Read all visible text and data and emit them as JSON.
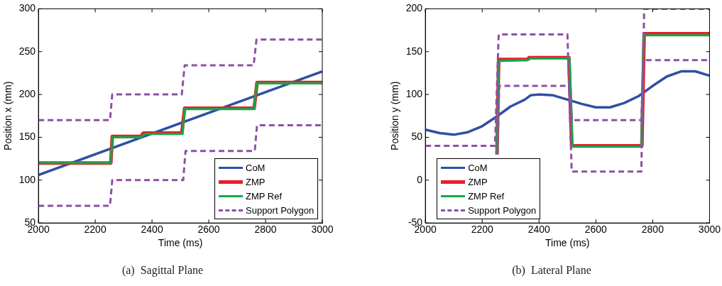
{
  "chart_data": [
    {
      "type": "line",
      "title": "(a)  Sagittal Plane",
      "xlabel": "Time (ms)",
      "ylabel": "Position x (mm)",
      "xlim": [
        2000,
        3000
      ],
      "xticks": [
        2000,
        2200,
        2400,
        2600,
        2800,
        3000
      ],
      "ylim": [
        50,
        300
      ],
      "yticks": [
        50,
        100,
        150,
        200,
        250,
        300
      ],
      "legend": "bottom right",
      "grid": false,
      "marker": "none",
      "series": [
        {
          "name": "CoM",
          "color": "#2e4fa3",
          "x": [
            2000,
            3000
          ],
          "values": [
            106,
            227
          ]
        },
        {
          "name": "ZMP",
          "color": "#e8202a",
          "x": [
            2000,
            2255,
            2260,
            2360,
            2370,
            2505,
            2515,
            2760,
            2770,
            3000
          ],
          "values": [
            120,
            120,
            151,
            151,
            155,
            155,
            184,
            184,
            214,
            214
          ]
        },
        {
          "name": "ZMP Ref",
          "color": "#12a84a",
          "x": [
            2000,
            2255,
            2260,
            2360,
            2375,
            2508,
            2515,
            2760,
            2768,
            3000
          ],
          "values": [
            120,
            120,
            150,
            150,
            154,
            154,
            183,
            183,
            213,
            213
          ]
        },
        {
          "name": "Support Polygon",
          "color": "#8e4fa8",
          "line_style": "dashed",
          "x": [
            2000,
            2252,
            2260,
            2505,
            2515,
            2758,
            2768,
            3000
          ],
          "values": [
            170,
            170,
            200,
            200,
            234,
            234,
            264,
            264
          ]
        },
        {
          "color": "#8e4fa8",
          "line_style": "dashed",
          "x": [
            2000,
            2252,
            2260,
            2510,
            2518,
            2762,
            2770,
            3000
          ],
          "values": [
            70,
            70,
            100,
            100,
            134,
            134,
            164,
            164
          ]
        }
      ]
    },
    {
      "type": "line",
      "title": "(b)  Lateral Plane",
      "xlabel": "Time (ms)",
      "ylabel": "Position y (mm)",
      "xlim": [
        2000,
        3000
      ],
      "xticks": [
        2000,
        2200,
        2400,
        2600,
        2800,
        3000
      ],
      "ylim": [
        -50,
        200
      ],
      "yticks": [
        -50,
        0,
        50,
        100,
        150,
        200
      ],
      "legend": "bottom left",
      "grid": false,
      "marker": "none",
      "series": [
        {
          "name": "CoM",
          "color": "#2e4fa3",
          "x": [
            2000,
            2050,
            2100,
            2150,
            2200,
            2250,
            2300,
            2350,
            2370,
            2400,
            2450,
            2500,
            2550,
            2600,
            2650,
            2700,
            2750,
            2800,
            2850,
            2900,
            2950,
            3000
          ],
          "values": [
            59,
            55,
            53,
            56,
            63,
            74,
            86,
            94,
            99,
            100,
            99,
            94,
            89,
            85,
            85,
            90,
            98,
            110,
            121,
            127,
            127,
            122
          ]
        },
        {
          "name": "ZMP",
          "color": "#e8202a",
          "x": [
            2252,
            2258,
            2360,
            2365,
            2505,
            2515,
            2762,
            2770,
            3000
          ],
          "values": [
            30,
            141,
            141,
            143,
            143,
            40,
            40,
            171,
            171
          ]
        },
        {
          "name": "ZMP Ref",
          "color": "#12a84a",
          "x": [
            2252,
            2258,
            2360,
            2370,
            2508,
            2518,
            2760,
            2768,
            3000
          ],
          "values": [
            30,
            139,
            140,
            142,
            142,
            39,
            39,
            169,
            169
          ]
        },
        {
          "name": "Support Polygon",
          "color": "#8e4fa8",
          "line_style": "dashed",
          "x": [
            2000,
            2245,
            2258,
            2500,
            2515,
            2760,
            2770,
            3000
          ],
          "values": [
            40,
            40,
            170,
            170,
            10,
            10,
            200,
            200
          ]
        },
        {
          "color": "#8e4fa8",
          "line_style": "dashed",
          "x": [
            2254,
            2260,
            2505,
            2515,
            2760,
            2768,
            3000
          ],
          "values": [
            30,
            110,
            110,
            70,
            70,
            140,
            140
          ]
        }
      ]
    }
  ]
}
